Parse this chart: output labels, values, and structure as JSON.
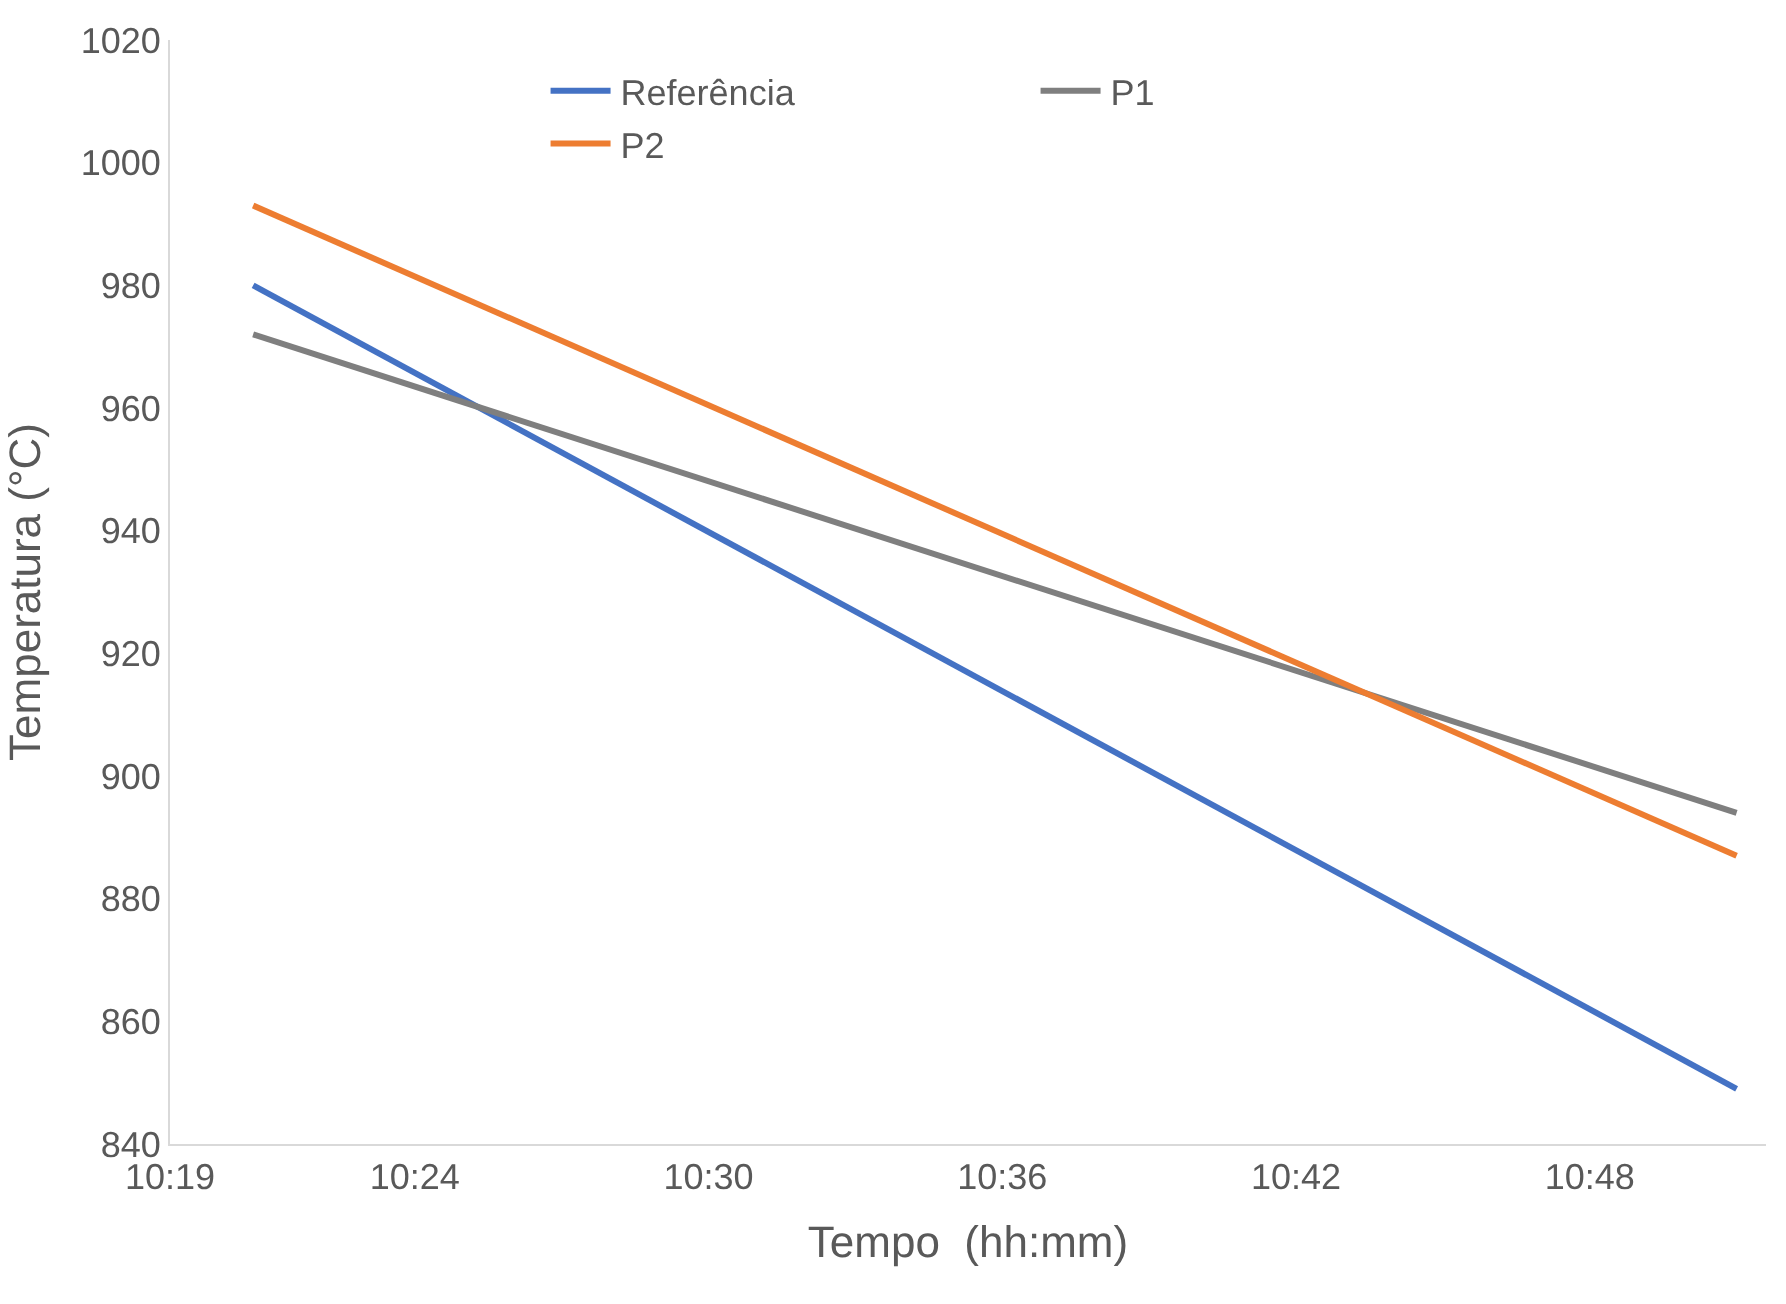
{
  "chart_data": {
    "type": "line",
    "xlabel": "Tempo  (hh:mm)",
    "ylabel": "Temperatura (°C)",
    "x": [
      10.345,
      10.85
    ],
    "series": [
      {
        "name": "Referência",
        "color": "#4472c4",
        "values": [
          980,
          849
        ]
      },
      {
        "name": "P1",
        "color": "#7f7f7f",
        "values": [
          972,
          894
        ]
      },
      {
        "name": "P2",
        "color": "#ed7d31",
        "values": [
          993,
          887
        ]
      }
    ],
    "xlim": [
      10.3167,
      10.86
    ],
    "xticks": [
      {
        "value": 10.3167,
        "label": "10:19"
      },
      {
        "value": 10.4,
        "label": "10:24"
      },
      {
        "value": 10.5,
        "label": "10:30"
      },
      {
        "value": 10.6,
        "label": "10:36"
      },
      {
        "value": 10.7,
        "label": "10:42"
      },
      {
        "value": 10.8,
        "label": "10:48"
      }
    ],
    "ylim": [
      840,
      1020
    ],
    "yticks": [
      840,
      860,
      880,
      900,
      920,
      940,
      960,
      980,
      1000,
      1020
    ],
    "grid": false,
    "legend": "top",
    "marker": "none",
    "line_style": "solid"
  }
}
